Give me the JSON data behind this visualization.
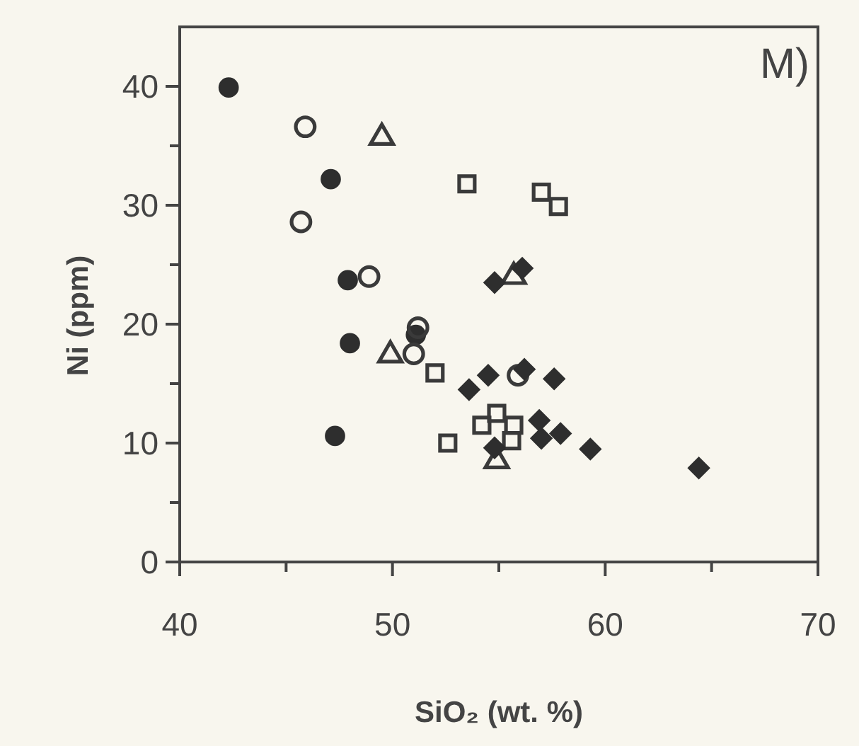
{
  "chart_data": {
    "type": "scatter",
    "xlabel": "SiO₂ (wt. %)",
    "ylabel": "Ni (ppm)",
    "annotations": [
      "M)"
    ],
    "xlim": [
      40,
      70
    ],
    "ylim": [
      0,
      45
    ],
    "xticks": [
      40,
      {
        "value": 45,
        "label": null
      },
      50,
      {
        "value": 55,
        "label": null
      },
      60,
      {
        "value": 65,
        "label": null
      },
      70
    ],
    "yticks": [
      0,
      {
        "value": 5,
        "label": null
      },
      10,
      {
        "value": 15,
        "label": null
      },
      20,
      {
        "value": 25,
        "label": null
      },
      30,
      {
        "value": 35,
        "label": null
      },
      40
    ],
    "grid": false,
    "series": [
      {
        "color": "#2e2e2e",
        "marker": "circle",
        "x": [
          42.3,
          47.1,
          47.9,
          48.0,
          51.1,
          47.3
        ],
        "values": [
          39.9,
          32.2,
          23.7,
          18.4,
          19.1,
          10.6
        ]
      },
      {
        "color": "#3a3a3a",
        "marker": "circle-open",
        "x": [
          45.9,
          45.7,
          48.9,
          51.2,
          51.0,
          55.9
        ],
        "values": [
          36.6,
          28.6,
          24.0,
          19.7,
          17.5,
          15.7
        ]
      },
      {
        "color": "#3a3a3a",
        "marker": "triangle-open",
        "x": [
          49.5,
          49.9,
          55.7,
          54.9
        ],
        "values": [
          35.7,
          17.4,
          24.0,
          8.5
        ]
      },
      {
        "color": "#3a3a3a",
        "marker": "square-open",
        "x": [
          53.5,
          57.0,
          57.8,
          52.0,
          52.6,
          54.9,
          54.2,
          55.7,
          55.6
        ],
        "values": [
          31.8,
          31.1,
          29.9,
          15.9,
          10.0,
          12.5,
          11.5,
          11.5,
          10.2
        ]
      },
      {
        "color": "#2e2e2e",
        "marker": "diamond",
        "x": [
          54.8,
          56.1,
          53.6,
          54.5,
          56.2,
          57.6,
          54.8,
          56.9,
          57.0,
          57.9,
          59.3,
          64.4
        ],
        "values": [
          23.5,
          24.7,
          14.5,
          15.7,
          16.2,
          15.4,
          9.6,
          11.9,
          10.4,
          10.8,
          9.5,
          7.9
        ]
      }
    ]
  }
}
